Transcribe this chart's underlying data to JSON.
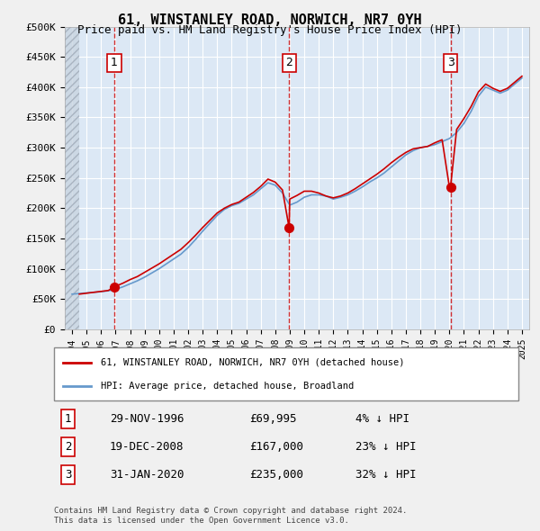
{
  "title": "61, WINSTANLEY ROAD, NORWICH, NR7 0YH",
  "subtitle": "Price paid vs. HM Land Registry's House Price Index (HPI)",
  "ylabel": "",
  "xlabel": "",
  "ylim": [
    0,
    500000
  ],
  "yticks": [
    0,
    50000,
    100000,
    150000,
    200000,
    250000,
    300000,
    350000,
    400000,
    450000,
    500000
  ],
  "ytick_labels": [
    "£0",
    "£50K",
    "£100K",
    "£150K",
    "£200K",
    "£250K",
    "£300K",
    "£350K",
    "£400K",
    "£450K",
    "£500K"
  ],
  "xlim_start": 1993.5,
  "xlim_end": 2025.5,
  "hatch_end_year": 1994.5,
  "background_color": "#e8f0f8",
  "plot_bg_color": "#dce8f5",
  "grid_color": "#ffffff",
  "hatch_color": "#c0c8d8",
  "red_line_color": "#cc0000",
  "blue_line_color": "#6699cc",
  "marker_color": "#cc0000",
  "vline_color": "#cc0000",
  "purchases": [
    {
      "number": 1,
      "year": 1996.9,
      "price": 69995,
      "date": "29-NOV-1996",
      "pct": "4%",
      "direction": "↓"
    },
    {
      "number": 2,
      "year": 2008.96,
      "price": 167000,
      "date": "19-DEC-2008",
      "pct": "23%",
      "direction": "↓"
    },
    {
      "number": 3,
      "year": 2020.08,
      "price": 235000,
      "date": "31-JAN-2020",
      "pct": "32%",
      "direction": "↓"
    }
  ],
  "hpi_data_x": [
    1994.0,
    1994.5,
    1995.0,
    1995.5,
    1996.0,
    1996.5,
    1997.0,
    1997.5,
    1998.0,
    1998.5,
    1999.0,
    1999.5,
    2000.0,
    2000.5,
    2001.0,
    2001.5,
    2002.0,
    2002.5,
    2003.0,
    2003.5,
    2004.0,
    2004.5,
    2005.0,
    2005.5,
    2006.0,
    2006.5,
    2007.0,
    2007.5,
    2008.0,
    2008.5,
    2009.0,
    2009.5,
    2010.0,
    2010.5,
    2011.0,
    2011.5,
    2012.0,
    2012.5,
    2013.0,
    2013.5,
    2014.0,
    2014.5,
    2015.0,
    2015.5,
    2016.0,
    2016.5,
    2017.0,
    2017.5,
    2018.0,
    2018.5,
    2019.0,
    2019.5,
    2020.0,
    2020.5,
    2021.0,
    2021.5,
    2022.0,
    2022.5,
    2023.0,
    2023.5,
    2024.0,
    2024.5,
    2025.0
  ],
  "hpi_data_y": [
    58000,
    59000,
    60000,
    61000,
    62000,
    63500,
    66000,
    70000,
    75000,
    80000,
    86000,
    93000,
    100000,
    108000,
    116000,
    124000,
    135000,
    148000,
    162000,
    175000,
    188000,
    198000,
    204000,
    208000,
    215000,
    222000,
    232000,
    242000,
    238000,
    225000,
    205000,
    210000,
    218000,
    222000,
    222000,
    220000,
    215000,
    218000,
    222000,
    228000,
    235000,
    243000,
    250000,
    258000,
    268000,
    278000,
    288000,
    295000,
    300000,
    302000,
    305000,
    310000,
    315000,
    325000,
    340000,
    360000,
    385000,
    400000,
    395000,
    390000,
    395000,
    405000,
    415000
  ],
  "price_paid_x": [
    1994.5,
    1995.0,
    1995.5,
    1996.0,
    1996.5,
    1996.9,
    1997.0,
    1997.5,
    1998.0,
    1998.5,
    1999.0,
    1999.5,
    2000.0,
    2000.5,
    2001.0,
    2001.5,
    2002.0,
    2002.5,
    2003.0,
    2003.5,
    2004.0,
    2004.5,
    2005.0,
    2005.5,
    2006.0,
    2006.5,
    2007.0,
    2007.5,
    2008.0,
    2008.5,
    2008.96,
    2009.0,
    2009.5,
    2010.0,
    2010.5,
    2011.0,
    2011.5,
    2012.0,
    2012.5,
    2013.0,
    2013.5,
    2014.0,
    2014.5,
    2015.0,
    2015.5,
    2016.0,
    2016.5,
    2017.0,
    2017.5,
    2018.0,
    2018.5,
    2019.0,
    2019.5,
    2020.0,
    2020.08,
    2020.5,
    2021.0,
    2021.5,
    2022.0,
    2022.5,
    2023.0,
    2023.5,
    2024.0,
    2024.5,
    2025.0
  ],
  "price_paid_y": [
    58000,
    59500,
    61000,
    62500,
    64000,
    69995,
    71000,
    76000,
    82000,
    87000,
    94000,
    101000,
    108000,
    116000,
    124000,
    132000,
    143000,
    155000,
    168000,
    180000,
    192000,
    200000,
    206000,
    210000,
    218000,
    226000,
    236000,
    248000,
    243000,
    230000,
    167000,
    215000,
    221000,
    228000,
    228000,
    225000,
    220000,
    217000,
    220000,
    225000,
    232000,
    240000,
    248000,
    256000,
    265000,
    275000,
    284000,
    292000,
    298000,
    300000,
    302000,
    308000,
    313000,
    235000,
    235000,
    330000,
    348000,
    368000,
    392000,
    405000,
    398000,
    393000,
    398000,
    408000,
    418000
  ],
  "legend_line1": "61, WINSTANLEY ROAD, NORWICH, NR7 0YH (detached house)",
  "legend_line2": "HPI: Average price, detached house, Broadland",
  "copyright_text": "Contains HM Land Registry data © Crown copyright and database right 2024.\nThis data is licensed under the Open Government Licence v3.0.",
  "xtick_years": [
    1994,
    1995,
    1996,
    1997,
    1998,
    1999,
    2000,
    2001,
    2002,
    2003,
    2004,
    2005,
    2006,
    2007,
    2008,
    2009,
    2010,
    2011,
    2012,
    2013,
    2014,
    2015,
    2016,
    2017,
    2018,
    2019,
    2020,
    2021,
    2022,
    2023,
    2024,
    2025
  ]
}
